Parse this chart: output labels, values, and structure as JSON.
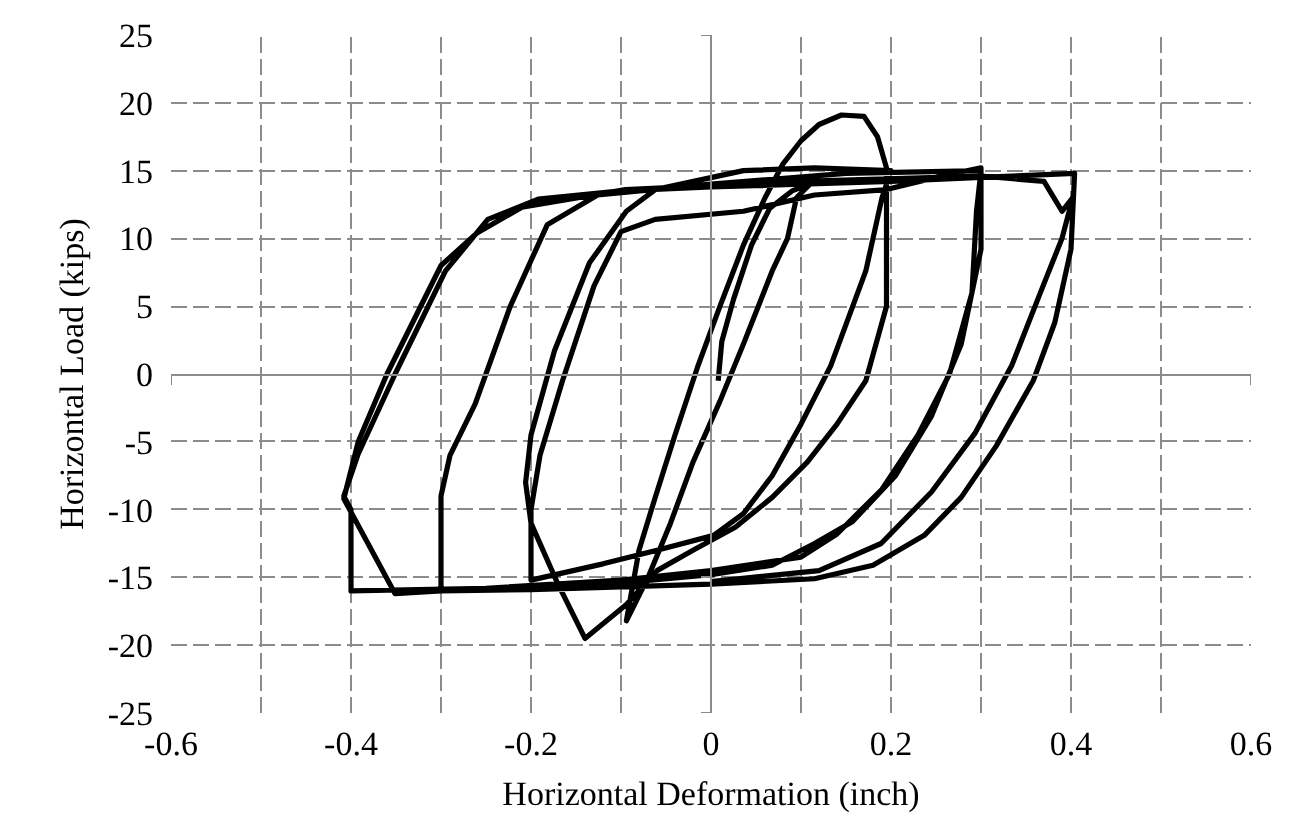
{
  "chart_data": {
    "type": "line",
    "xlabel": "Horizontal Deformation (inch)",
    "ylabel": "Horizontal Load (kips)",
    "xlim": [
      -0.6,
      0.6
    ],
    "ylim": [
      -25,
      25
    ],
    "xticks": [
      -0.6,
      {
        "value": -0.5,
        "label": null
      },
      -0.4,
      {
        "value": -0.3,
        "label": null
      },
      -0.2,
      {
        "value": -0.1,
        "label": null
      },
      0,
      {
        "value": 0.1,
        "label": null
      },
      0.2,
      {
        "value": 0.3,
        "label": null
      },
      0.4,
      {
        "value": 0.5,
        "label": null
      },
      0.6
    ],
    "yticks": [
      -25,
      -20,
      -15,
      -10,
      -5,
      0,
      5,
      10,
      15,
      20,
      25
    ],
    "grid": true,
    "marker": "none",
    "line_style": "solid",
    "series": [
      {
        "color": "#000000",
        "x": [
          0.008,
          0.012,
          0.025,
          0.045,
          0.065,
          0.09,
          0.11,
          0.095,
          0.085,
          0.068,
          0.036,
          0.01,
          -0.02,
          -0.045,
          -0.07,
          -0.094,
          -0.08,
          -0.062,
          -0.04,
          -0.015,
          0.01,
          0.036,
          0.06,
          0.08,
          0.1,
          0.12,
          0.145,
          0.17,
          0.185,
          0.195,
          0.195,
          0.195,
          0.172,
          0.14,
          0.107,
          0.068,
          0.027,
          -0.02,
          -0.06,
          -0.094,
          -0.14,
          -0.17,
          -0.2,
          -0.206,
          -0.2,
          -0.174,
          -0.135,
          -0.094,
          -0.062,
          0.036,
          0.115,
          0.2,
          0.19,
          0.172,
          0.133,
          0.1,
          0.068,
          0.036,
          0.003,
          -0.06,
          -0.12,
          -0.2,
          -0.2,
          -0.19,
          -0.165,
          -0.13,
          -0.1,
          -0.062,
          0.036,
          0.115,
          0.195,
          0.25,
          0.3,
          0.3,
          0.278,
          0.245,
          0.205,
          0.157,
          0.115,
          0.068,
          0,
          -0.1,
          -0.2,
          -0.3,
          -0.3,
          -0.29,
          -0.262,
          -0.223,
          -0.182,
          -0.126,
          0,
          0.15,
          0.3,
          0.295,
          0.29,
          0.265,
          0.23,
          0.19,
          0.14,
          0.1,
          0,
          -0.1,
          -0.25,
          -0.4,
          -0.4,
          -0.408,
          -0.392,
          -0.351,
          -0.295,
          -0.248,
          -0.192,
          -0.1,
          0,
          0.1,
          0.2,
          0.3,
          0.404,
          0.4,
          0.382,
          0.358,
          0.317,
          0.278,
          0.237,
          0.18,
          0.115,
          0,
          -0.1,
          -0.2,
          -0.3,
          -0.351,
          -0.408,
          -0.392,
          -0.36,
          -0.33,
          -0.3,
          -0.26,
          -0.21,
          -0.095,
          0.1,
          0.3,
          0.37,
          0.39,
          0.402,
          0.39,
          0.366,
          0.334,
          0.293,
          0.245,
          0.189,
          0.12,
          0
        ],
        "values": [
          -0.5,
          2.4,
          5.5,
          9.5,
          12.2,
          13.5,
          14,
          13,
          10,
          7.6,
          2.2,
          -2,
          -6.5,
          -11,
          -15,
          -18.2,
          -13,
          -9.1,
          -4.5,
          0.5,
          5,
          9.5,
          13,
          15.5,
          17.2,
          18.4,
          19.1,
          19,
          17.5,
          15.2,
          12.6,
          5,
          -0.5,
          -3.7,
          -6.5,
          -9.1,
          -11.3,
          -13,
          -14.5,
          -17,
          -19.5,
          -15.5,
          -11,
          -8,
          -4.5,
          1.7,
          8.2,
          12,
          13.6,
          15,
          15.2,
          15,
          13,
          7.6,
          0.6,
          -3.7,
          -7.5,
          -10.3,
          -11.9,
          -13,
          -14,
          -15.2,
          -10,
          -6,
          -0.5,
          6.5,
          10.5,
          11.4,
          12,
          13.2,
          13.6,
          14.5,
          15.2,
          9.2,
          2.2,
          -3.1,
          -7.5,
          -10.9,
          -12.5,
          -14.1,
          -14.8,
          -15.4,
          -15.7,
          -16,
          -9,
          -6,
          -2.2,
          5,
          11,
          13.2,
          14,
          14.8,
          15,
          12,
          6,
          0,
          -4.5,
          -8.5,
          -11.8,
          -13.5,
          -14.5,
          -15.2,
          -15.8,
          -16,
          -10,
          -9,
          -5.9,
          0,
          7.6,
          11.4,
          12.9,
          13.5,
          13.8,
          14,
          14.2,
          14.5,
          14.8,
          9.2,
          3.8,
          -0.5,
          -5.3,
          -9.1,
          -11.9,
          -14.1,
          -15.1,
          -15.5,
          -15.7,
          -15.9,
          -16,
          -16.2,
          -9.2,
          -5,
          0,
          4,
          8,
          10.4,
          12.3,
          13.6,
          14.2,
          14.6,
          14.2,
          12,
          13,
          10,
          6,
          0.6,
          -4.4,
          -8.7,
          -12.5,
          -14.5,
          -15.3
        ]
      }
    ]
  }
}
